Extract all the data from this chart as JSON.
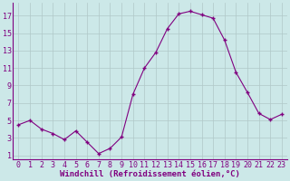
{
  "x": [
    0,
    1,
    2,
    3,
    4,
    5,
    6,
    7,
    8,
    9,
    10,
    11,
    12,
    13,
    14,
    15,
    16,
    17,
    18,
    19,
    20,
    21,
    22,
    23
  ],
  "y": [
    4.5,
    5.0,
    4.0,
    3.5,
    2.8,
    3.8,
    2.5,
    1.2,
    1.8,
    3.1,
    8.0,
    11.0,
    12.8,
    15.5,
    17.2,
    17.5,
    17.1,
    16.7,
    14.2,
    10.5,
    8.2,
    5.8,
    5.1,
    5.7
  ],
  "line_color": "#800080",
  "marker": "+",
  "bg_color": "#cce8e8",
  "grid_color": "#b0c8c8",
  "xlabel": "Windchill (Refroidissement éolien,°C)",
  "xlabel_color": "#800080",
  "xlabel_fontsize": 6.5,
  "tick_color": "#800080",
  "tick_fontsize": 6,
  "yticks": [
    1,
    3,
    5,
    7,
    9,
    11,
    13,
    15,
    17
  ],
  "xtick_labels": [
    "0",
    "1",
    "2",
    "3",
    "4",
    "5",
    "6",
    "7",
    "8",
    "9",
    "10",
    "11",
    "12",
    "13",
    "14",
    "15",
    "16",
    "17",
    "18",
    "19",
    "20",
    "21",
    "22",
    "23"
  ],
  "ylim": [
    0.5,
    18.5
  ],
  "xlim": [
    -0.5,
    23.5
  ]
}
